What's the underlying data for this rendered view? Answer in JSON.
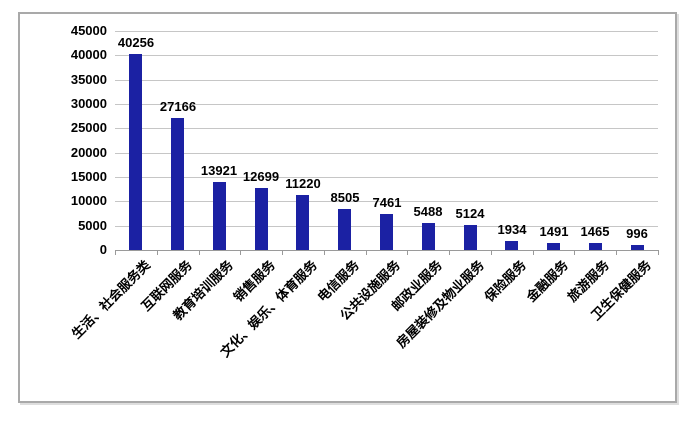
{
  "chart_data": {
    "type": "bar",
    "title": "",
    "xlabel": "",
    "ylabel": "",
    "categories": [
      "生活、社会服务类",
      "互联网服务",
      "教育培训服务",
      "销售服务",
      "文化、娱乐、体育服务",
      "电信服务",
      "公共设施服务",
      "邮政业服务",
      "房屋装修及物业服务",
      "保险服务",
      "金融服务",
      "旅游服务",
      "卫生保健服务"
    ],
    "values": [
      40256,
      27166,
      13921,
      12699,
      11220,
      8505,
      7461,
      5488,
      5124,
      1934,
      1491,
      1465,
      996
    ],
    "data_labels": [
      "40256",
      "27166",
      "13921",
      "12699",
      "11220",
      "8505",
      "7461",
      "5488",
      "5124",
      "1934",
      "1491",
      "1465",
      "996"
    ],
    "ylim": [
      0,
      45000
    ],
    "yticks": [
      0,
      5000,
      10000,
      15000,
      20000,
      25000,
      30000,
      35000,
      40000,
      45000
    ],
    "grid": "horizontal",
    "legend": "none",
    "colors": {
      "bar": "#1b21a3",
      "gridline": "#c6c6c6",
      "axis_line": "#9a9a9a",
      "tick": "#9a9a9a",
      "text": "#000000",
      "frame_border": "#a9a9a9"
    }
  }
}
